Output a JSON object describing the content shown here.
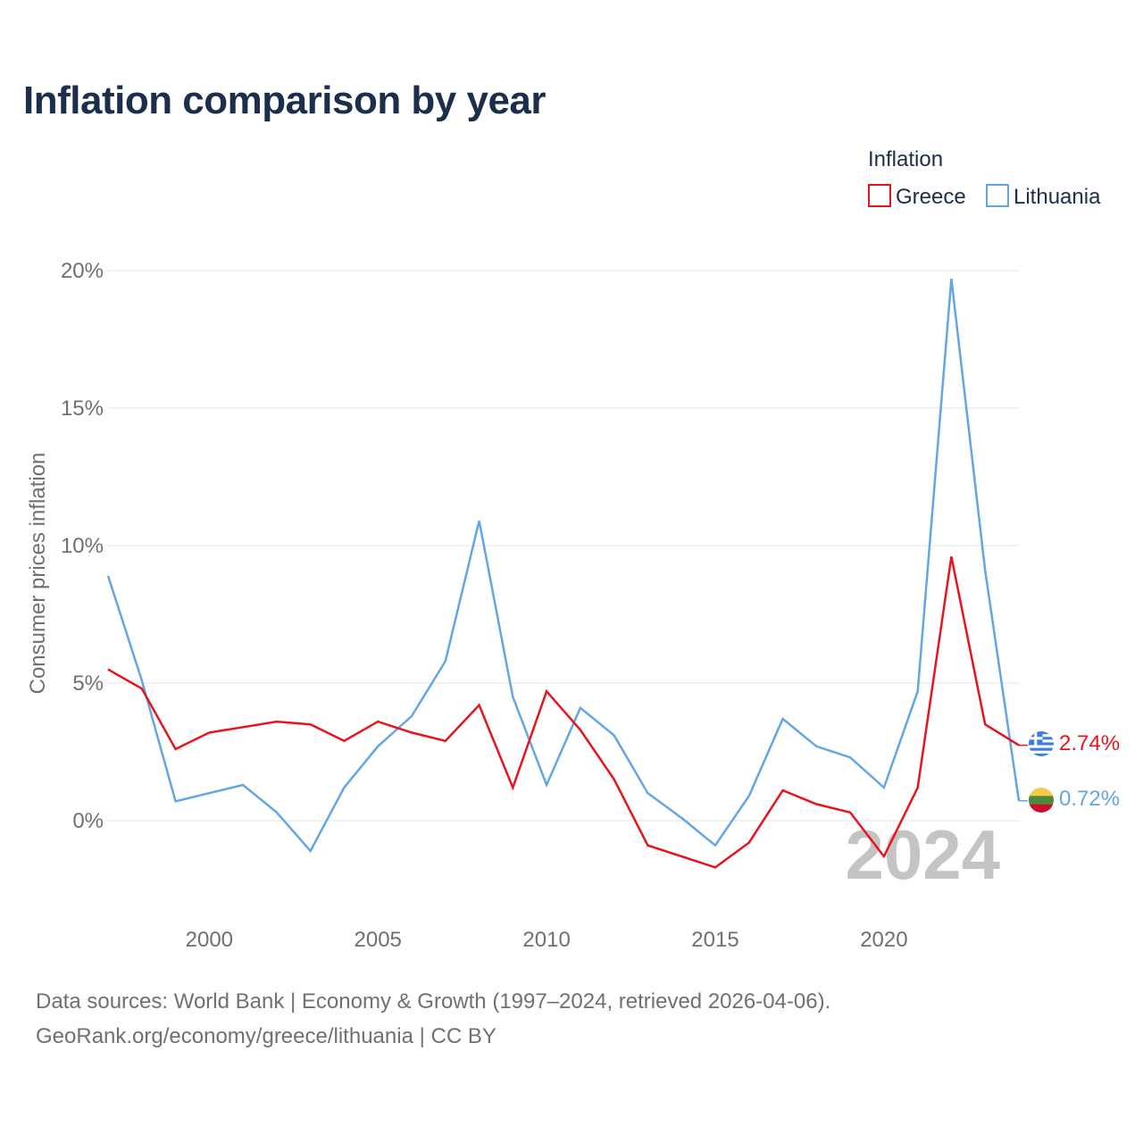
{
  "title": "Inflation comparison by year",
  "legend": {
    "title": "Inflation",
    "items": [
      {
        "name": "Greece",
        "color": "#e8141b"
      },
      {
        "name": "Lithuania",
        "color": "#62a6e6"
      }
    ]
  },
  "watermark_year": "2024",
  "footer": {
    "source": "Data sources: World Bank | Economy & Growth (1997–2024, retrieved 2026-04-06).",
    "credit": "GeoRank.org/economy/greece/lithuania | CC BY"
  },
  "chart_data": {
    "type": "line",
    "title": "Inflation comparison by year",
    "xlabel": "",
    "ylabel": "Consumer prices inflation",
    "x": [
      1997,
      1998,
      1999,
      2000,
      2001,
      2002,
      2003,
      2004,
      2005,
      2006,
      2007,
      2008,
      2009,
      2010,
      2011,
      2012,
      2013,
      2014,
      2015,
      2016,
      2017,
      2018,
      2019,
      2020,
      2021,
      2022,
      2023,
      2024
    ],
    "xlim": [
      1997,
      2024
    ],
    "x_ticks": [
      2000,
      2005,
      2010,
      2015,
      2020
    ],
    "x_tick_labels": [
      "2000",
      "2005",
      "2010",
      "2015",
      "2020"
    ],
    "ylim": [
      -3,
      20
    ],
    "y_ticks": [
      0,
      5,
      10,
      15,
      20
    ],
    "y_tick_labels": [
      "0%",
      "5%",
      "10%",
      "15%",
      "20%"
    ],
    "grid": true,
    "legend_position": "top-right",
    "series": [
      {
        "name": "Greece",
        "color": "#e8141b",
        "end_label": "2.74%",
        "flag": "greece-flag",
        "values": [
          5.5,
          4.8,
          2.6,
          3.2,
          3.4,
          3.6,
          3.5,
          2.9,
          3.6,
          3.2,
          2.9,
          4.2,
          1.2,
          4.7,
          3.3,
          1.5,
          -0.9,
          -1.3,
          -1.7,
          -0.8,
          1.1,
          0.6,
          0.3,
          -1.3,
          1.2,
          9.6,
          3.5,
          2.74
        ]
      },
      {
        "name": "Lithuania",
        "color": "#62a6e6",
        "end_label": "0.72%",
        "flag": "lithuania-flag",
        "values": [
          8.9,
          5.1,
          0.7,
          1.0,
          1.3,
          0.3,
          -1.1,
          1.2,
          2.7,
          3.8,
          5.8,
          10.9,
          4.5,
          1.3,
          4.1,
          3.1,
          1.0,
          0.1,
          -0.9,
          0.9,
          3.7,
          2.7,
          2.3,
          1.2,
          4.7,
          19.7,
          9.1,
          0.72
        ]
      }
    ]
  }
}
